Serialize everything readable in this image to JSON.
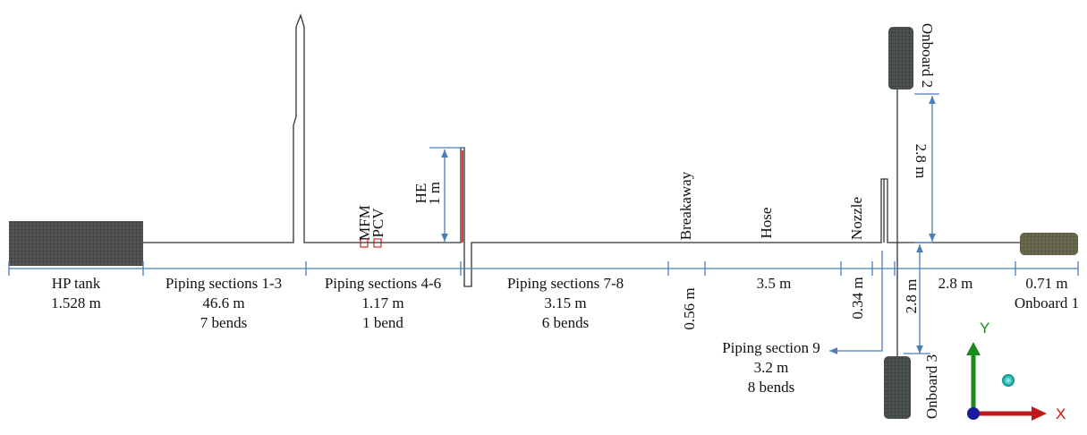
{
  "components": {
    "hp_tank": "HP tank",
    "he": "HE",
    "mfm": "MFM",
    "pcv": "PCV",
    "breakaway": "Breakaway",
    "hose": "Hose",
    "nozzle": "Nozzle",
    "onboard_1": "Onboard 1",
    "onboard_2": "Onboard 2",
    "onboard_3": "Onboard 3"
  },
  "sections": [
    {
      "name": "HP tank",
      "length": "1.528 m"
    },
    {
      "name": "Piping sections 1-3",
      "length": "46.6 m",
      "bends": "7 bends"
    },
    {
      "name": "Piping sections 4-6",
      "length": "1.17 m",
      "bends": "1 bend"
    },
    {
      "name": "Piping sections 7-8",
      "length": "3.15 m",
      "bends": "6 bends"
    },
    {
      "name": "Piping section 9",
      "length": "3.2 m",
      "bends": "8 bends"
    }
  ],
  "dimensions": {
    "he_height": "1 m",
    "breakaway": "0.56 m",
    "hose": "3.5 m",
    "nozzle": "0.34 m",
    "onboard_1_pipe": "2.8 m",
    "onboard_1_tank": "0.71 m",
    "onboard_2_pipe": "2.8 m",
    "onboard_3_pipe": "2.8 m"
  },
  "axes": {
    "y": "Y",
    "x": "X"
  }
}
